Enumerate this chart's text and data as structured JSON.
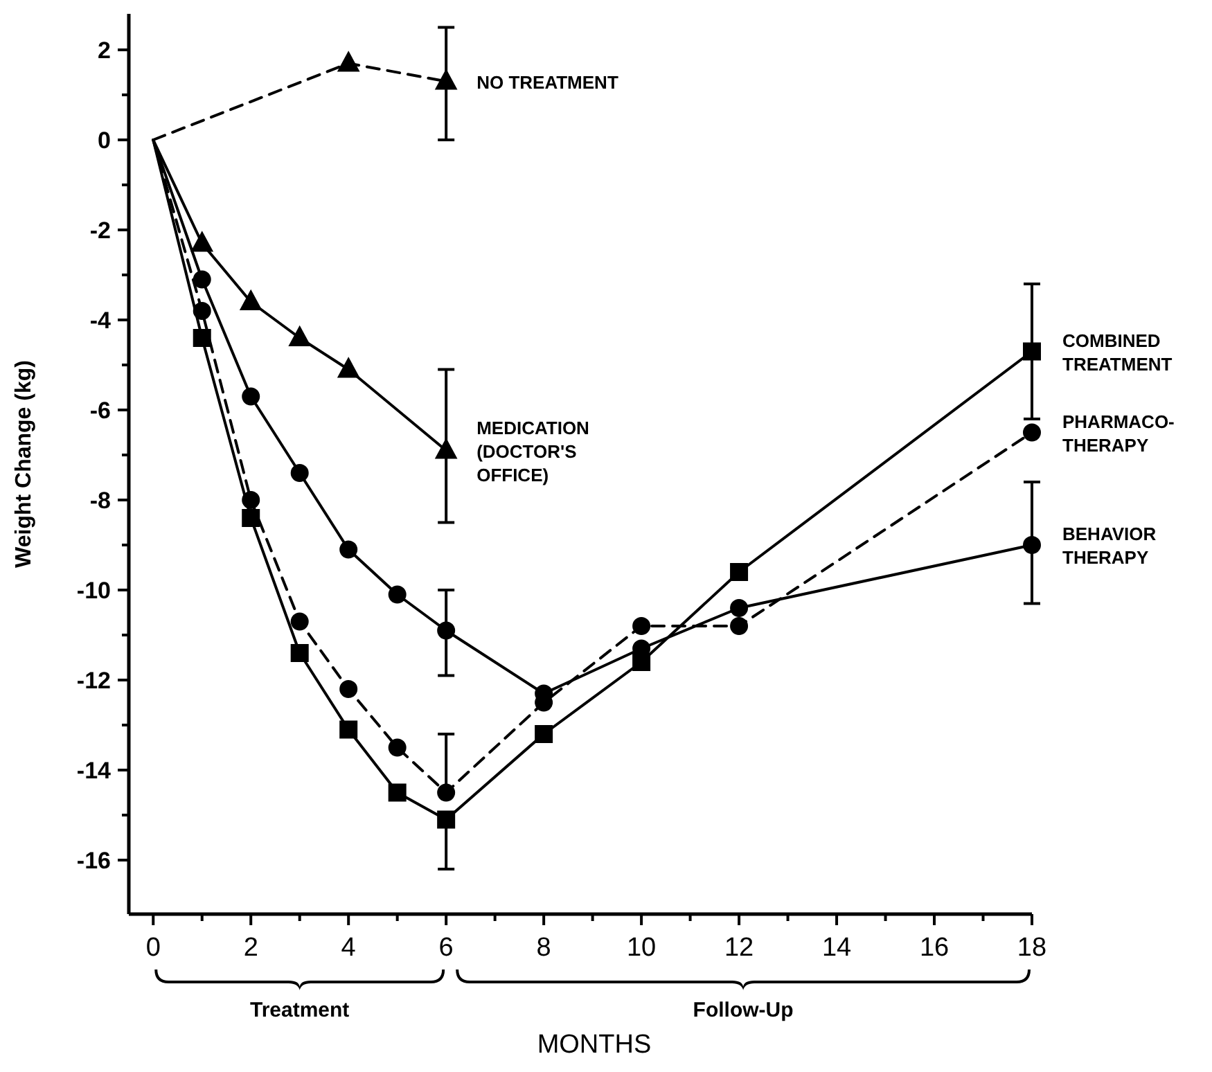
{
  "chart_data": {
    "type": "line",
    "xlabel": "MONTHS",
    "ylabel": "Weight Change (kg)",
    "xlim": [
      -0.5,
      18
    ],
    "ylim": [
      -17.2,
      2.8
    ],
    "xticks": [
      0,
      {
        "value": 1,
        "label": null
      },
      2,
      {
        "value": 3,
        "label": null
      },
      4,
      {
        "value": 5,
        "label": null
      },
      6,
      {
        "value": 7,
        "label": null
      },
      8,
      {
        "value": 9,
        "label": null
      },
      10,
      {
        "value": 11,
        "label": null
      },
      12,
      {
        "value": 13,
        "label": null
      },
      14,
      {
        "value": 15,
        "label": null
      },
      16,
      {
        "value": 17,
        "label": null
      },
      18
    ],
    "yticks": [
      2,
      {
        "value": 1,
        "label": null
      },
      0,
      {
        "value": -1,
        "label": null
      },
      -2,
      {
        "value": -3,
        "label": null
      },
      -4,
      {
        "value": -5,
        "label": null
      },
      -6,
      {
        "value": -7,
        "label": null
      },
      -8,
      {
        "value": -9,
        "label": null
      },
      -10,
      {
        "value": -11,
        "label": null
      },
      -12,
      {
        "value": -13,
        "label": null
      },
      -14,
      {
        "value": -15,
        "label": null
      },
      -16
    ],
    "grid": false,
    "series": [
      {
        "name": "NO TREATMENT",
        "color": "#000000",
        "x": [
          0,
          4,
          6
        ],
        "values": [
          0,
          1.7,
          1.3
        ],
        "errors": [
          null,
          null,
          [
            0.0,
            2.5
          ]
        ],
        "marker": "triangle",
        "line_style": "dashed"
      },
      {
        "name": "MEDICATION\n(DOCTOR'S\nOFFICE)",
        "color": "#000000",
        "x": [
          0,
          1,
          2,
          3,
          4,
          6
        ],
        "values": [
          0,
          -2.3,
          -3.6,
          -4.4,
          -5.1,
          -6.9
        ],
        "errors": [
          null,
          null,
          null,
          null,
          null,
          [
            -8.5,
            -5.1
          ]
        ],
        "marker": "triangle",
        "line_style": "solid"
      },
      {
        "name": "COMBINED\nTREATMENT",
        "color": "#000000",
        "x": [
          0,
          1,
          2,
          3,
          4,
          5,
          6,
          8,
          10,
          12,
          18
        ],
        "values": [
          0,
          -4.4,
          -8.4,
          -11.4,
          -13.1,
          -14.5,
          -15.1,
          -13.2,
          -11.6,
          -9.6,
          -4.7
        ],
        "errors": [
          null,
          null,
          null,
          null,
          null,
          null,
          [
            -16.2,
            -15.1
          ],
          null,
          null,
          null,
          [
            -6.2,
            -3.2
          ]
        ],
        "marker": "square",
        "line_style": "solid"
      },
      {
        "name": "PHARMACO-\nTHERAPY",
        "color": "#000000",
        "x": [
          0,
          1,
          2,
          3,
          4,
          5,
          6,
          8,
          10,
          12,
          18
        ],
        "values": [
          0,
          -3.8,
          -8.0,
          -10.7,
          -12.2,
          -13.5,
          -14.5,
          -12.5,
          -10.8,
          -10.8,
          -6.5
        ],
        "errors": [
          null,
          null,
          null,
          null,
          null,
          null,
          [
            -14.5,
            -13.2
          ],
          null,
          null,
          null,
          null
        ],
        "marker": "circle",
        "line_style": "dashed"
      },
      {
        "name": "BEHAVIOR\nTHERAPY",
        "color": "#000000",
        "x": [
          0,
          1,
          2,
          3,
          4,
          5,
          6,
          8,
          10,
          12,
          18
        ],
        "values": [
          0,
          -3.1,
          -5.7,
          -7.4,
          -9.1,
          -10.1,
          -10.9,
          -12.3,
          -11.3,
          -10.4,
          -9.0
        ],
        "errors": [
          null,
          null,
          null,
          null,
          null,
          null,
          [
            -11.9,
            -10.0
          ],
          null,
          null,
          null,
          [
            -10.3,
            -7.6
          ]
        ],
        "marker": "circle",
        "line_style": "solid"
      }
    ],
    "annotations": [
      "Treatment",
      "Follow-Up"
    ]
  }
}
